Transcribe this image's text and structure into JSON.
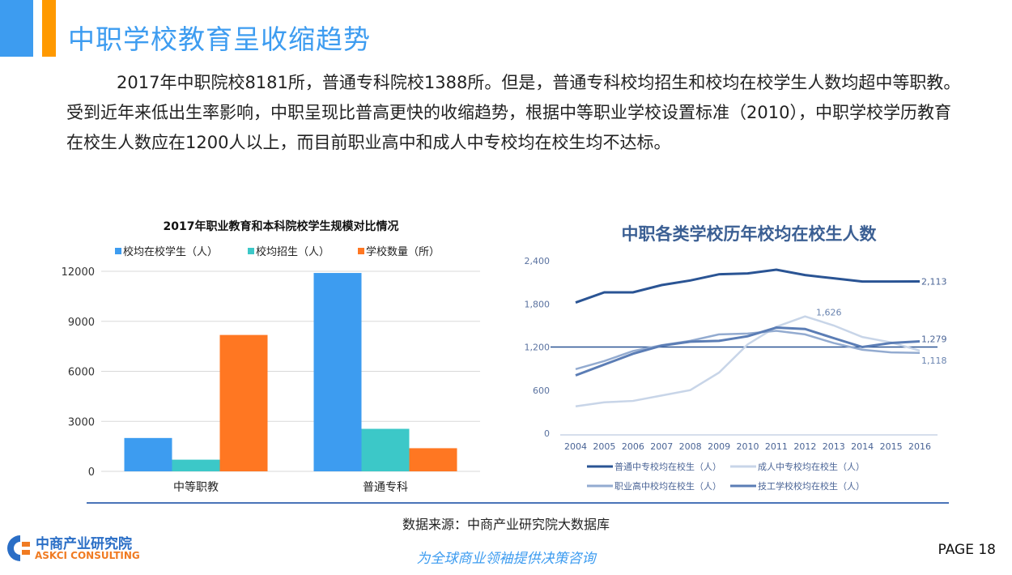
{
  "header": {
    "title": "中职学校教育呈收缩趋势"
  },
  "paragraph": "2017年中职院校8181所，普通专科院校1388所。但是，普通专科校均招生和校均在校学生人数均超中等职教。受到近年来低出生率影响，中职呈现比普高更快的收缩趋势，根据中等职业学校设置标准（2010），中职学校学历教育在校生人数应在1200人以上，而目前职业高中和成人中专校均在校生均不达标。",
  "chart_data": [
    {
      "type": "bar",
      "title": "2017年职业教育和本科院校学生规模对比情况",
      "categories": [
        "中等职教",
        "普通专科"
      ],
      "series": [
        {
          "name": "校均在校学生（人）",
          "color": "#3d9cf0",
          "values": [
            2000,
            11900
          ]
        },
        {
          "name": "校均招生（人）",
          "color": "#3cc8c8",
          "values": [
            700,
            2550
          ]
        },
        {
          "name": "学校数量（所）",
          "color": "#ff7722",
          "values": [
            8181,
            1388
          ]
        }
      ],
      "ylim": [
        0,
        12000
      ],
      "yticks": [
        "0",
        "3000",
        "6000",
        "9000",
        "12000"
      ],
      "grid": true,
      "legend": "top"
    },
    {
      "type": "line",
      "title": "中职各类学校历年校均在校生人数",
      "x": [
        "2004",
        "2005",
        "2006",
        "2007",
        "2008",
        "2009",
        "2010",
        "2011",
        "2012",
        "2013",
        "2014",
        "2015",
        "2016"
      ],
      "ylim": [
        0,
        2400
      ],
      "yticks": [
        "0",
        "600",
        "1,200",
        "1,800",
        "2,400"
      ],
      "reference_line": 1200,
      "series": [
        {
          "name": "普通中专校均在校生（人）",
          "color": "#2a5494",
          "values": [
            1819,
            1961,
            1961,
            2062,
            2126,
            2212,
            2224,
            2276,
            2201,
            2156,
            2111,
            2111,
            2113
          ],
          "end_label": "2,113"
        },
        {
          "name": "成人中专校均在校生（人）",
          "color": "#c8d5e8",
          "values": [
            375,
            431,
            450,
            525,
            600,
            844,
            1237,
            1481,
            1626,
            1500,
            1339,
            1264,
            1150
          ],
          "peak_label": "1,626"
        },
        {
          "name": "职业高中校均在校生（人）",
          "color": "#93abd0",
          "values": [
            892,
            1005,
            1144,
            1226,
            1286,
            1376,
            1387,
            1425,
            1376,
            1256,
            1162,
            1125,
            1118
          ],
          "end_label": "1,118"
        },
        {
          "name": "技工学校校均在校生（人）",
          "color": "#5b7db5",
          "values": [
            806,
            956,
            1106,
            1219,
            1275,
            1286,
            1350,
            1470,
            1451,
            1324,
            1200,
            1256,
            1279
          ],
          "end_label": "1,279"
        }
      ],
      "legend": "bottom"
    }
  ],
  "footer": {
    "source": "数据来源：中商产业研究院大数据库",
    "slogan": "为全球商业领袖提供决策咨询",
    "page": "PAGE 18",
    "logo_cn": "中商产业研究院",
    "logo_en": "ASKCI CONSULTING"
  }
}
